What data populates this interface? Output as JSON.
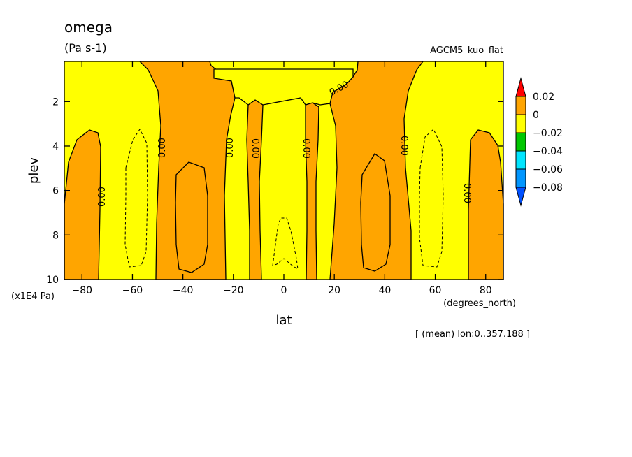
{
  "chart_data": {
    "type": "contour",
    "title": "omega",
    "units": "(Pa s-1)",
    "model": "AGCM5_kuo_flat",
    "xlabel": "lat",
    "xunit": "(degrees_north)",
    "ylabel": "plev",
    "yunit": "(x1E4 Pa)",
    "mean_note": "[ (mean) lon:0..357.188 ]",
    "xlim": [
      -87,
      87
    ],
    "ylim": [
      10,
      0.2
    ],
    "xticks": [
      -80,
      -60,
      -40,
      -20,
      0,
      20,
      40,
      60,
      80
    ],
    "yticks": [
      2,
      4,
      6,
      8,
      10
    ],
    "contour_labels": [
      "0.00",
      "0.00",
      "0.00",
      "0.00",
      "0.00",
      "0.00",
      "0.00",
      "0.00"
    ],
    "colorbar": {
      "levels": [
        0.02,
        0,
        -0.02,
        -0.04,
        -0.06,
        -0.08
      ],
      "labels": [
        "0.02",
        "0",
        "−0.02",
        "−0.04",
        "−0.06",
        "−0.08"
      ],
      "colors": [
        "#ff0000",
        "#ffa500",
        "#ffff00",
        "#00c800",
        "#00e5ff",
        "#0096ff",
        "#0050ff"
      ]
    }
  }
}
